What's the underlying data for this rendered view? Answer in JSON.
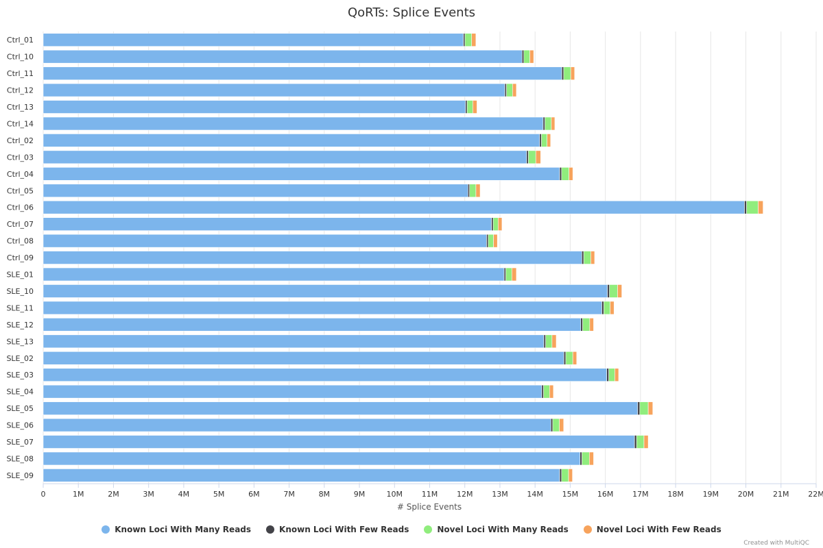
{
  "chart_data": {
    "type": "bar",
    "orientation": "horizontal",
    "stacked": true,
    "title": "QoRTs: Splice Events",
    "xlabel": "# Splice Events",
    "ylabel": "",
    "xlim": [
      0,
      22000000
    ],
    "grid": true,
    "legend_position": "bottom",
    "x_ticks": [
      "0",
      "1M",
      "2M",
      "3M",
      "4M",
      "5M",
      "6M",
      "7M",
      "8M",
      "9M",
      "10M",
      "11M",
      "12M",
      "13M",
      "14M",
      "15M",
      "16M",
      "17M",
      "18M",
      "19M",
      "20M",
      "21M",
      "22M"
    ],
    "categories": [
      "Ctrl_01",
      "Ctrl_10",
      "Ctrl_11",
      "Ctrl_12",
      "Ctrl_13",
      "Ctrl_14",
      "Ctrl_02",
      "Ctrl_03",
      "Ctrl_04",
      "Ctrl_05",
      "Ctrl_06",
      "Ctrl_07",
      "Ctrl_08",
      "Ctrl_09",
      "SLE_01",
      "SLE_10",
      "SLE_11",
      "SLE_12",
      "SLE_13",
      "SLE_02",
      "SLE_03",
      "SLE_04",
      "SLE_05",
      "SLE_06",
      "SLE_07",
      "SLE_08",
      "SLE_09"
    ],
    "series": [
      {
        "name": "Known Loci With Many Reads",
        "color": "#7cb5ec",
        "values": [
          11960000,
          13630000,
          14760000,
          13140000,
          12020000,
          14230000,
          14130000,
          13760000,
          14700000,
          12090000,
          19960000,
          12760000,
          12620000,
          15330000,
          13120000,
          16060000,
          15900000,
          15300000,
          14250000,
          14820000,
          16040000,
          14190000,
          16920000,
          14450000,
          16830000,
          15280000,
          14700000
        ]
      },
      {
        "name": "Known Loci With Few Reads",
        "color": "#434348",
        "values": [
          45000,
          50000,
          55000,
          48000,
          46000,
          52000,
          52000,
          50000,
          55000,
          46000,
          60000,
          48000,
          47000,
          55000,
          48000,
          58000,
          57000,
          55000,
          52000,
          54000,
          58000,
          52000,
          60000,
          53000,
          60000,
          55000,
          54000
        ]
      },
      {
        "name": "Novel Loci With Many Reads",
        "color": "#90ed7d",
        "values": [
          190000,
          170000,
          200000,
          170000,
          160000,
          180000,
          160000,
          210000,
          210000,
          180000,
          330000,
          140000,
          150000,
          200000,
          170000,
          230000,
          180000,
          200000,
          180000,
          200000,
          170000,
          170000,
          240000,
          190000,
          210000,
          210000,
          200000
        ]
      },
      {
        "name": "Novel Loci With Few Reads",
        "color": "#f7a35c",
        "values": [
          120000,
          110000,
          110000,
          110000,
          120000,
          100000,
          100000,
          140000,
          110000,
          120000,
          140000,
          110000,
          110000,
          110000,
          130000,
          120000,
          110000,
          110000,
          120000,
          110000,
          110000,
          110000,
          130000,
          120000,
          120000,
          120000,
          110000
        ]
      }
    ]
  },
  "credit": "Created with MultiQC"
}
